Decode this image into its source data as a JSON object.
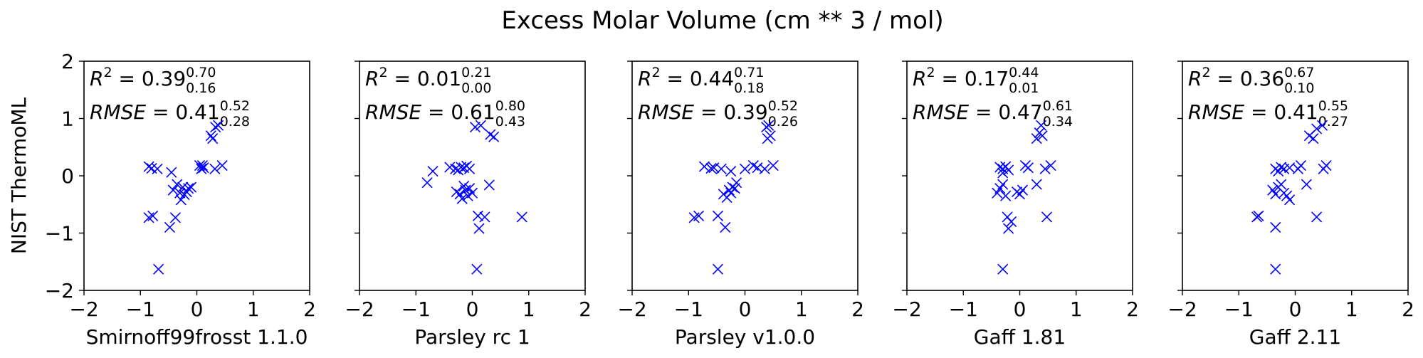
{
  "title": "Excess Molar Volume (cm ** 3 / mol)",
  "ylabel": "NIST ThermoML",
  "colors": {
    "marker": "#0000ff",
    "axis": "#000000"
  },
  "chart_data": [
    {
      "type": "scatter",
      "xlabel": "Smirnoff99frosst 1.1.0",
      "xlim": [
        -2,
        2
      ],
      "ylim": [
        -2,
        2
      ],
      "xticks": [
        "−2",
        "−1",
        "0",
        "1",
        "2"
      ],
      "yticks": [
        "−2",
        "−1",
        "0",
        "1",
        "2"
      ],
      "r2": {
        "prefix": "R",
        "exp": "2",
        "value": "0.39",
        "upper": "0.70",
        "lower": "0.16"
      },
      "rmse": {
        "label": "RMSE",
        "value": "0.41",
        "upper": "0.52",
        "lower": "0.28"
      },
      "points": [
        [
          -0.85,
          0.16
        ],
        [
          -0.8,
          0.13
        ],
        [
          -0.7,
          0.12
        ],
        [
          -0.85,
          -0.73
        ],
        [
          -0.78,
          -0.7
        ],
        [
          -0.68,
          -1.63
        ],
        [
          -0.48,
          -0.9
        ],
        [
          -0.38,
          -0.73
        ],
        [
          -0.45,
          0.06
        ],
        [
          -0.42,
          -0.25
        ],
        [
          -0.35,
          -0.15
        ],
        [
          -0.3,
          -0.3
        ],
        [
          -0.28,
          -0.42
        ],
        [
          -0.25,
          -0.2
        ],
        [
          -0.22,
          -0.33
        ],
        [
          -0.18,
          -0.28
        ],
        [
          -0.15,
          -0.22
        ],
        [
          -0.1,
          -0.2
        ],
        [
          0.05,
          0.18
        ],
        [
          0.08,
          0.12
        ],
        [
          0.1,
          0.18
        ],
        [
          0.12,
          0.14
        ],
        [
          0.25,
          0.7
        ],
        [
          0.28,
          0.65
        ],
        [
          0.33,
          0.85
        ],
        [
          0.38,
          0.88
        ],
        [
          0.32,
          0.12
        ],
        [
          0.45,
          0.18
        ]
      ]
    },
    {
      "type": "scatter",
      "xlabel": "Parsley rc 1",
      "xlim": [
        -2,
        2
      ],
      "ylim": [
        -2,
        2
      ],
      "xticks": [
        "−2",
        "−1",
        "0",
        "1",
        "2"
      ],
      "yticks": [
        "−2",
        "−1",
        "0",
        "1",
        "2"
      ],
      "r2": {
        "prefix": "R",
        "exp": "2",
        "value": "0.01",
        "upper": "0.21",
        "lower": "0.00"
      },
      "rmse": {
        "label": "RMSE",
        "value": "0.61",
        "upper": "0.80",
        "lower": "0.43"
      },
      "points": [
        [
          -0.8,
          -0.12
        ],
        [
          -0.7,
          0.08
        ],
        [
          -0.4,
          0.15
        ],
        [
          -0.3,
          0.12
        ],
        [
          -0.25,
          0.1
        ],
        [
          -0.2,
          0.15
        ],
        [
          -0.15,
          0.14
        ],
        [
          -0.1,
          0.17
        ],
        [
          -0.05,
          0.12
        ],
        [
          -0.28,
          -0.28
        ],
        [
          -0.22,
          -0.32
        ],
        [
          -0.18,
          -0.4
        ],
        [
          -0.12,
          -0.25
        ],
        [
          -0.08,
          -0.35
        ],
        [
          -0.05,
          -0.22
        ],
        [
          0.0,
          -0.3
        ],
        [
          -0.15,
          -0.18
        ],
        [
          0.05,
          0.85
        ],
        [
          0.15,
          0.88
        ],
        [
          0.32,
          0.72
        ],
        [
          0.38,
          0.68
        ],
        [
          0.3,
          -0.16
        ],
        [
          0.1,
          -0.7
        ],
        [
          0.12,
          -0.92
        ],
        [
          0.22,
          -0.72
        ],
        [
          0.88,
          -0.72
        ],
        [
          0.08,
          -1.63
        ]
      ]
    },
    {
      "type": "scatter",
      "xlabel": "Parsley v1.0.0",
      "xlim": [
        -2,
        2
      ],
      "ylim": [
        -2,
        2
      ],
      "xticks": [
        "−2",
        "−1",
        "0",
        "1",
        "2"
      ],
      "yticks": [
        "−2",
        "−1",
        "0",
        "1",
        "2"
      ],
      "r2": {
        "prefix": "R",
        "exp": "2",
        "value": "0.44",
        "upper": "0.71",
        "lower": "0.18"
      },
      "rmse": {
        "label": "RMSE",
        "value": "0.39",
        "upper": "0.52",
        "lower": "0.26"
      },
      "points": [
        [
          -0.72,
          0.16
        ],
        [
          -0.6,
          0.13
        ],
        [
          -0.55,
          0.14
        ],
        [
          -0.42,
          0.12
        ],
        [
          -0.25,
          0.08
        ],
        [
          -0.9,
          -0.73
        ],
        [
          -0.82,
          -0.7
        ],
        [
          -0.48,
          -0.7
        ],
        [
          -0.35,
          -0.9
        ],
        [
          -0.48,
          -1.63
        ],
        [
          -0.38,
          -0.32
        ],
        [
          -0.32,
          -0.38
        ],
        [
          -0.28,
          -0.25
        ],
        [
          -0.25,
          -0.3
        ],
        [
          -0.22,
          -0.2
        ],
        [
          -0.18,
          -0.22
        ],
        [
          -0.15,
          -0.12
        ],
        [
          0.0,
          0.12
        ],
        [
          0.15,
          0.18
        ],
        [
          0.22,
          0.14
        ],
        [
          0.35,
          0.12
        ],
        [
          0.38,
          0.85
        ],
        [
          0.42,
          0.88
        ],
        [
          0.45,
          0.7
        ],
        [
          0.4,
          0.65
        ],
        [
          0.5,
          0.18
        ]
      ]
    },
    {
      "type": "scatter",
      "xlabel": "Gaff 1.81",
      "xlim": [
        -2,
        2
      ],
      "ylim": [
        -2,
        2
      ],
      "xticks": [
        "−2",
        "−1",
        "0",
        "1",
        "2"
      ],
      "yticks": [
        "−2",
        "−1",
        "0",
        "1",
        "2"
      ],
      "r2": {
        "prefix": "R",
        "exp": "2",
        "value": "0.17",
        "upper": "0.44",
        "lower": "0.01"
      },
      "rmse": {
        "label": "RMSE",
        "value": "0.47",
        "upper": "0.61",
        "lower": "0.34"
      },
      "points": [
        [
          -0.35,
          0.15
        ],
        [
          -0.3,
          0.12
        ],
        [
          -0.25,
          0.16
        ],
        [
          -0.2,
          0.1
        ],
        [
          -0.3,
          0.05
        ],
        [
          -0.4,
          -0.3
        ],
        [
          -0.35,
          -0.22
        ],
        [
          -0.3,
          -0.15
        ],
        [
          -0.25,
          -0.35
        ],
        [
          -0.22,
          -0.72
        ],
        [
          -0.2,
          -0.92
        ],
        [
          -0.15,
          -0.8
        ],
        [
          -0.05,
          -0.28
        ],
        [
          0.0,
          -0.32
        ],
        [
          0.05,
          -0.25
        ],
        [
          0.1,
          0.18
        ],
        [
          0.15,
          0.14
        ],
        [
          0.3,
          0.65
        ],
        [
          0.35,
          0.75
        ],
        [
          0.38,
          0.88
        ],
        [
          0.4,
          0.7
        ],
        [
          0.3,
          -0.15
        ],
        [
          0.45,
          0.12
        ],
        [
          0.55,
          0.18
        ],
        [
          0.48,
          -0.72
        ],
        [
          -0.3,
          -1.63
        ]
      ]
    },
    {
      "type": "scatter",
      "xlabel": "Gaff 2.11",
      "xlim": [
        -2,
        2
      ],
      "ylim": [
        -2,
        2
      ],
      "xticks": [
        "−2",
        "−1",
        "0",
        "1",
        "2"
      ],
      "yticks": [
        "−2",
        "−1",
        "0",
        "1",
        "2"
      ],
      "r2": {
        "prefix": "R",
        "exp": "2",
        "value": "0.36",
        "upper": "0.67",
        "lower": "0.10"
      },
      "rmse": {
        "label": "RMSE",
        "value": "0.41",
        "upper": "0.55",
        "lower": "0.27"
      },
      "points": [
        [
          -0.68,
          -0.72
        ],
        [
          -0.65,
          -0.7
        ],
        [
          -0.35,
          -0.9
        ],
        [
          -0.4,
          -0.25
        ],
        [
          -0.35,
          -0.32
        ],
        [
          -0.3,
          -0.2
        ],
        [
          -0.25,
          -0.15
        ],
        [
          -0.2,
          -0.3
        ],
        [
          -0.15,
          -0.35
        ],
        [
          -0.1,
          -0.42
        ],
        [
          -0.35,
          0.12
        ],
        [
          -0.3,
          0.08
        ],
        [
          -0.25,
          0.15
        ],
        [
          -0.2,
          0.12
        ],
        [
          -0.1,
          0.14
        ],
        [
          0.05,
          0.12
        ],
        [
          0.1,
          0.18
        ],
        [
          0.2,
          -0.15
        ],
        [
          0.25,
          0.7
        ],
        [
          0.32,
          0.65
        ],
        [
          0.38,
          0.82
        ],
        [
          0.48,
          0.88
        ],
        [
          0.5,
          0.12
        ],
        [
          0.55,
          0.18
        ],
        [
          0.38,
          -0.72
        ],
        [
          -0.35,
          -1.63
        ]
      ]
    }
  ]
}
